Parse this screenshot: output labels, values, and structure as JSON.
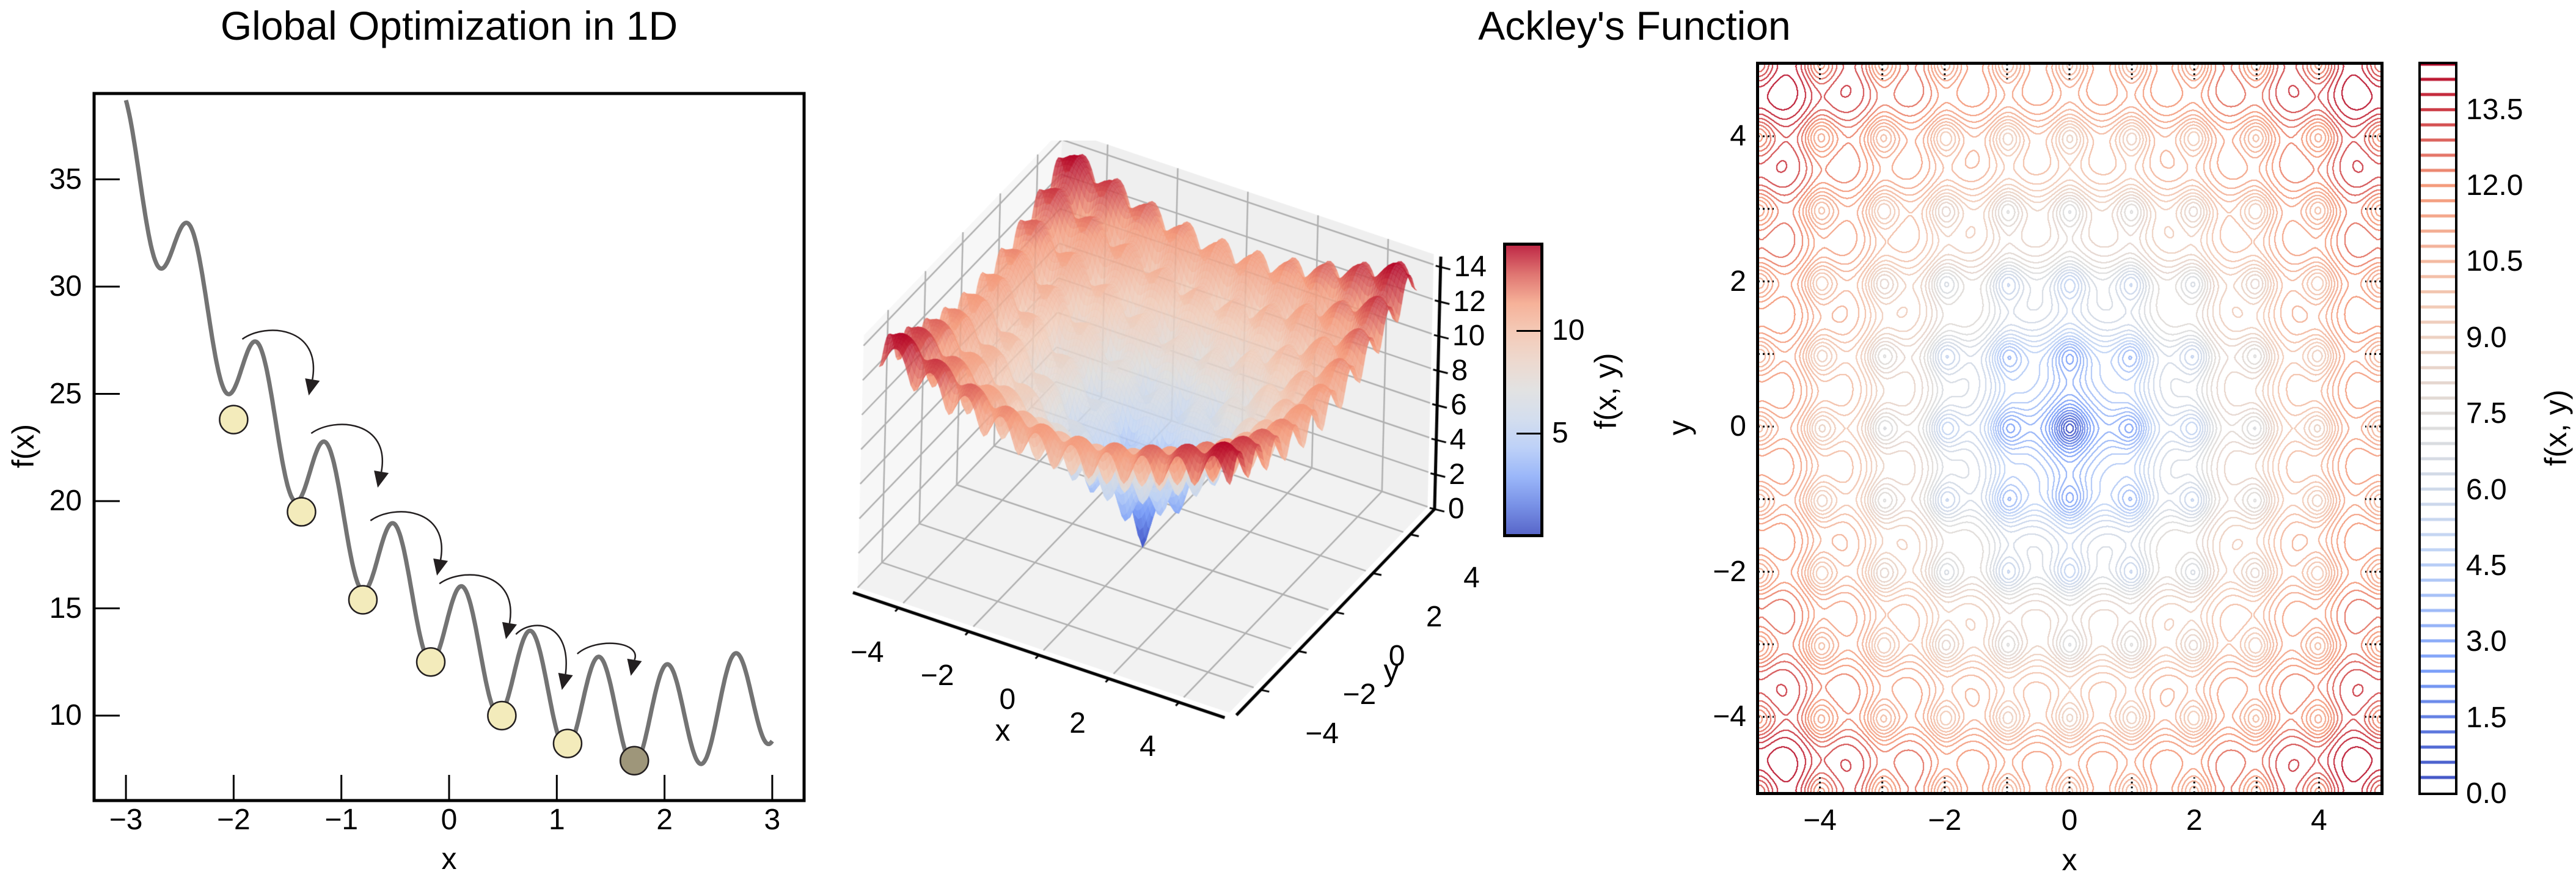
{
  "titles": {
    "left": "Global Optimization in 1D",
    "right": "Ackley's Function"
  },
  "chart_data": [
    {
      "id": "global-optimization-1d",
      "type": "line",
      "title": "Global Optimization in 1D",
      "xlabel": "x",
      "ylabel": "f(x)",
      "xlim": [
        -3.3,
        3.3
      ],
      "ylim": [
        6.0,
        39.0
      ],
      "xticks": [
        -3,
        -2,
        -1,
        0,
        1,
        2,
        3
      ],
      "xtick_labels": [
        "−3",
        "−2",
        "−1",
        "0",
        "1",
        "2",
        "3"
      ],
      "yticks": [
        10,
        15,
        20,
        25,
        30,
        35
      ],
      "ytick_labels": [
        "10",
        "15",
        "20",
        "25",
        "30",
        "35"
      ],
      "grid": false,
      "curve": {
        "description": "f(x) = 1.071x^2 - 4.21x + 14.13 + 2.4cos(9.94(x - 0.13))",
        "x_range": [
          -3,
          3
        ],
        "color": "#737373",
        "local_maxima": [
          {
            "x": -2.42,
            "y": 31.6
          },
          {
            "x": -1.78,
            "y": 26.5
          },
          {
            "x": -1.15,
            "y": 22.1
          },
          {
            "x": -0.52,
            "y": 18.6
          },
          {
            "x": 0.13,
            "y": 15.9
          },
          {
            "x": 0.76,
            "y": 13.9
          },
          {
            "x": 1.4,
            "y": 12.8
          },
          {
            "x": 2.05,
            "y": 12.4
          },
          {
            "x": 2.68,
            "y": 12.9
          }
        ],
        "local_minima": [
          {
            "x": -2.65,
            "y": 29.2
          },
          {
            "x": -2.0,
            "y": 23.8
          },
          {
            "x": -1.37,
            "y": 19.5
          },
          {
            "x": -0.8,
            "y": 15.4
          },
          {
            "x": -0.17,
            "y": 12.5
          },
          {
            "x": 0.49,
            "y": 10.0
          },
          {
            "x": 1.1,
            "y": 8.7
          },
          {
            "x": 1.72,
            "y": 7.9
          },
          {
            "x": 2.35,
            "y": 7.6
          }
        ],
        "endpoints": [
          {
            "x": -3.0,
            "y": 37.4
          },
          {
            "x": 3.0,
            "y": 8.5
          }
        ]
      },
      "balls": [
        {
          "x": -2.0,
          "y": 23.8,
          "color": "#f3ebbb"
        },
        {
          "x": -1.37,
          "y": 19.5,
          "color": "#f3ebbb"
        },
        {
          "x": -0.8,
          "y": 15.4,
          "color": "#f3ebbb"
        },
        {
          "x": -0.17,
          "y": 12.5,
          "color": "#f3ebbb"
        },
        {
          "x": 0.49,
          "y": 10.0,
          "color": "#f3ebbb"
        },
        {
          "x": 1.1,
          "y": 8.7,
          "color": "#f3ebbb"
        },
        {
          "x": 1.72,
          "y": 7.9,
          "color": "#9e967a"
        }
      ],
      "arrows": [
        {
          "from": [
            -1.92,
            27.55
          ],
          "to": [
            -1.28,
            25.04
          ]
        },
        {
          "from": [
            -1.28,
            23.16
          ],
          "to": [
            -0.64,
            20.74
          ]
        },
        {
          "from": [
            -0.73,
            19.09
          ],
          "to": [
            -0.09,
            16.64
          ]
        },
        {
          "from": [
            -0.09,
            16.15
          ],
          "to": [
            0.55,
            13.68
          ]
        },
        {
          "from": [
            0.62,
            13.79
          ],
          "to": [
            1.07,
            11.31
          ]
        },
        {
          "from": [
            1.19,
            12.88
          ],
          "to": [
            1.71,
            11.97
          ]
        }
      ]
    },
    {
      "id": "ackley-surface-3d",
      "type": "surface",
      "title": "Ackley's Function",
      "function": "f(x,y) = -20 exp(-0.2 sqrt(0.5(x^2+y^2))) - exp(0.5(cos 2πx + cos 2πy)) + e + 20",
      "xlabel": "x",
      "ylabel": "y",
      "zlabel": "",
      "xlim": [
        -5,
        5
      ],
      "ylim": [
        -5,
        5
      ],
      "zlim": [
        0,
        14.3
      ],
      "xticks": [
        -4,
        -2,
        0,
        2,
        4
      ],
      "xtick_labels": [
        "−4",
        "−2",
        "0",
        "2",
        "4"
      ],
      "yticks": [
        -4,
        -2,
        0,
        2,
        4
      ],
      "ytick_labels": [
        "−4",
        "−2",
        "0",
        "2",
        "4"
      ],
      "zticks": [
        0,
        2,
        4,
        6,
        8,
        10,
        12,
        14
      ],
      "ztick_labels": [
        "0",
        "2",
        "4",
        "6",
        "8",
        "10",
        "12",
        "14"
      ],
      "colormap": "coolwarm",
      "colorbar": {
        "label": "f(x, y)",
        "ticks": [
          5,
          10
        ],
        "tick_labels": [
          "5",
          "10"
        ],
        "range": [
          0,
          14.3
        ]
      }
    },
    {
      "id": "ackley-contour",
      "type": "contour",
      "xlabel": "x",
      "ylabel": "y",
      "xlim": [
        -5,
        5
      ],
      "ylim": [
        -5,
        5
      ],
      "xticks": [
        -4,
        -2,
        0,
        2,
        4
      ],
      "xtick_labels": [
        "−4",
        "−2",
        "0",
        "2",
        "4"
      ],
      "yticks": [
        -4,
        -2,
        0,
        2,
        4
      ],
      "ytick_labels": [
        "−4",
        "−2",
        "0",
        "2",
        "4"
      ],
      "levels": {
        "min": 0.0,
        "max": 14.4,
        "step": 0.3
      },
      "colormap": "coolwarm",
      "colorbar": {
        "label": "f(x, y)",
        "ticks": [
          0.0,
          1.5,
          3.0,
          4.5,
          6.0,
          7.5,
          9.0,
          10.5,
          12.0,
          13.5
        ],
        "tick_labels": [
          "0.0",
          "1.5",
          "3.0",
          "4.5",
          "6.0",
          "7.5",
          "9.0",
          "10.5",
          "12.0",
          "13.5"
        ]
      },
      "global_minimum": {
        "x": 0,
        "y": 0,
        "value": 0
      }
    }
  ],
  "colors": {
    "coolwarm": [
      "#3b4cc0",
      "#7b9ff9",
      "#c0d4f5",
      "#dddddd",
      "#f2cbb7",
      "#f49a7b",
      "#b40426"
    ],
    "curve": "#737373",
    "ball_fill": "#f3ebbb",
    "ball_final": "#9e967a",
    "pane": "#f2f2f2",
    "grid3d": "#b0b0b0"
  }
}
